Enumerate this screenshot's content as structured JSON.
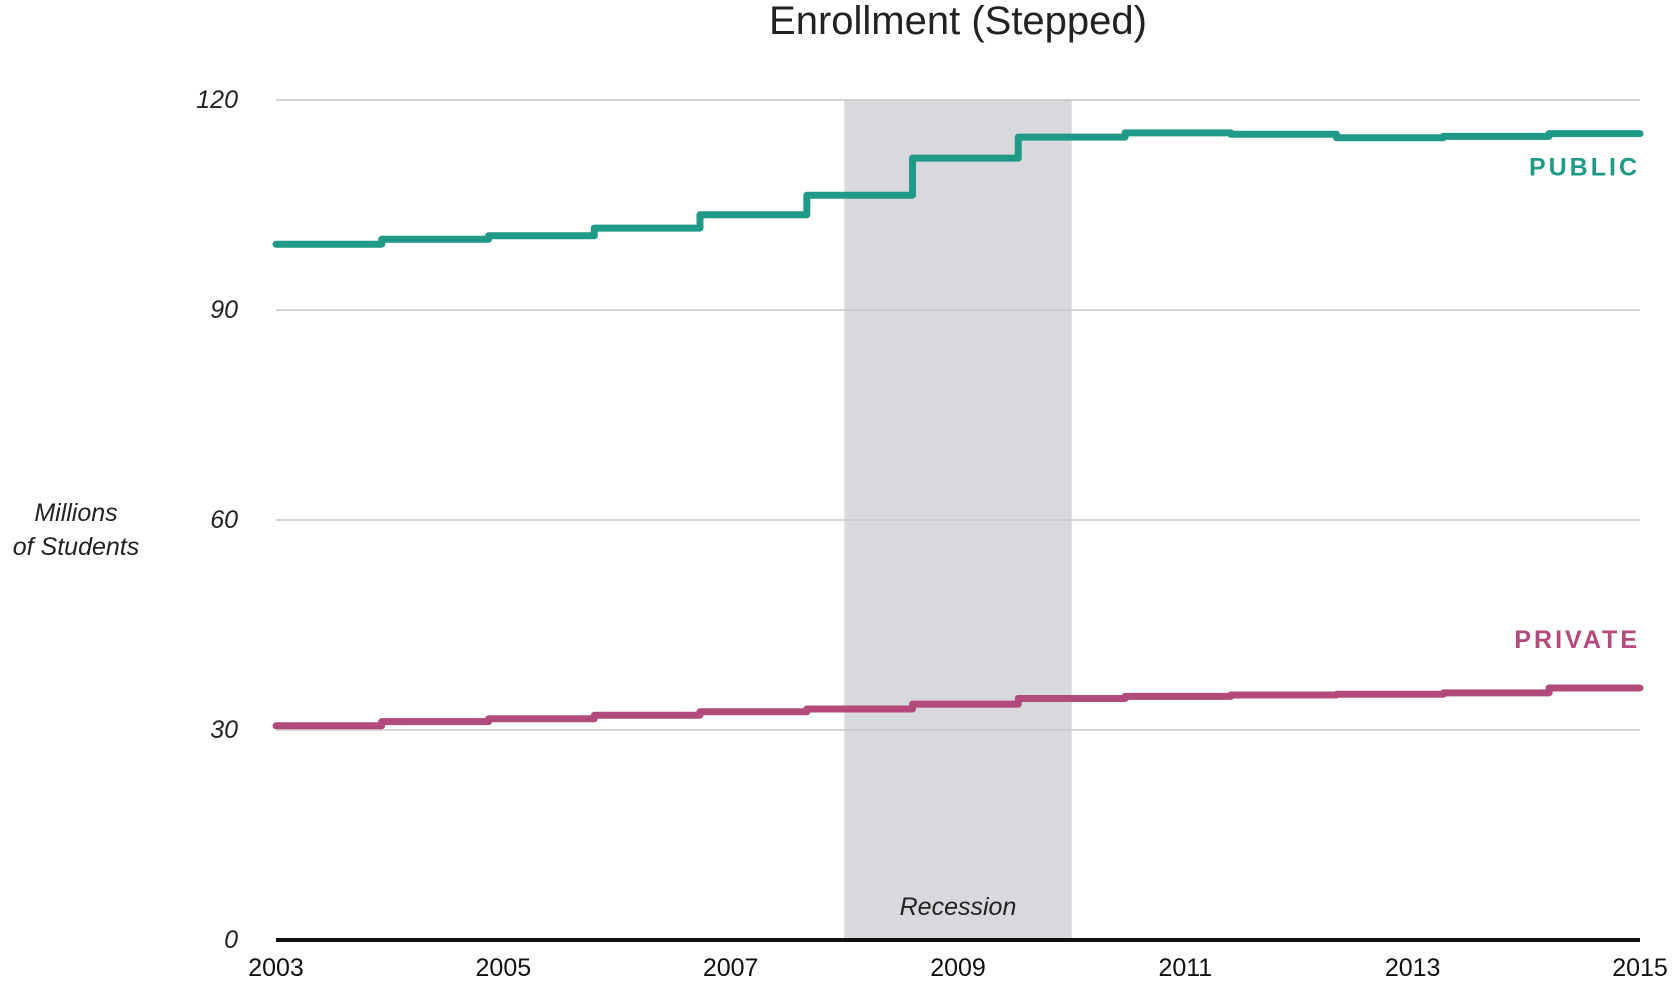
{
  "chart_data": {
    "type": "line",
    "step": true,
    "title": "Enrollment (Stepped)",
    "ylabel_lines": [
      "Millions",
      "of Students"
    ],
    "xlabel": "",
    "xlim": [
      2003,
      2015
    ],
    "ylim": [
      0,
      120
    ],
    "yticks": [
      0,
      30,
      60,
      90,
      120
    ],
    "xticks": [
      2003,
      2005,
      2007,
      2009,
      2011,
      2013,
      2015
    ],
    "grid": true,
    "x": [
      2003.0,
      2003.93,
      2004.87,
      2005.8,
      2006.73,
      2007.67,
      2008.6,
      2009.53,
      2010.47,
      2011.4,
      2012.33,
      2013.27,
      2014.2,
      2015.0
    ],
    "series": [
      {
        "name": "PUBLIC",
        "color": "#1f9a86",
        "values": [
          99.4,
          100.1,
          100.6,
          101.7,
          103.6,
          106.4,
          111.7,
          114.7,
          115.3,
          115.1,
          114.6,
          114.8,
          115.2,
          115.2
        ]
      },
      {
        "name": "PRIVATE",
        "color": "#b24a7c",
        "values": [
          30.6,
          31.2,
          31.6,
          32.1,
          32.6,
          33.0,
          33.7,
          34.5,
          34.8,
          35.0,
          35.1,
          35.3,
          36.0,
          36.0
        ]
      }
    ],
    "annotations": [
      {
        "label": "Recession",
        "x_start": 2008.0,
        "x_end": 2010.0,
        "color": "#d8d9dc"
      }
    ]
  }
}
